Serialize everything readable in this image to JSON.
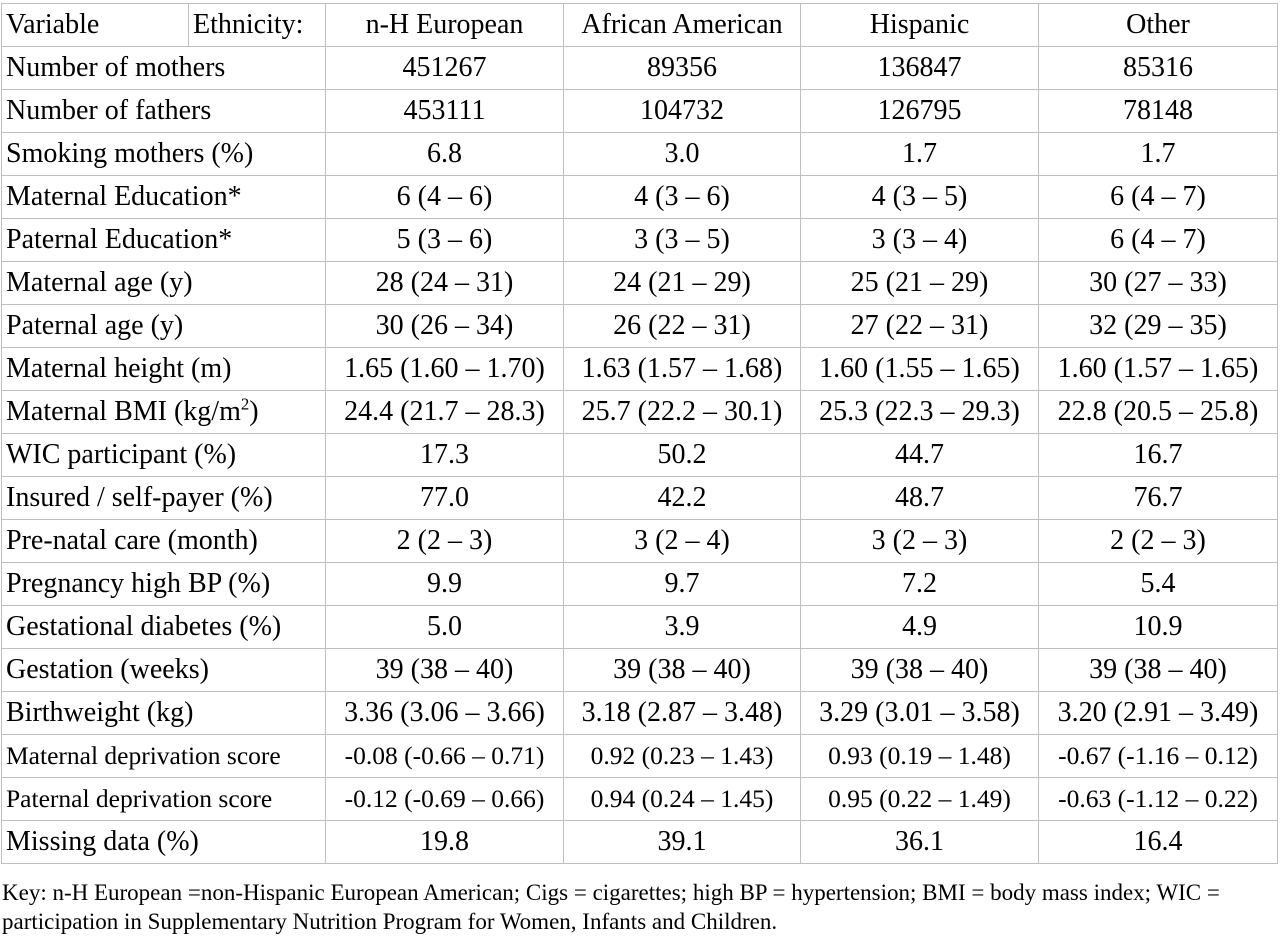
{
  "header": {
    "variable": "Variable",
    "ethnicity": "Ethnicity:",
    "groups": [
      "n-H European",
      "African American",
      "Hispanic",
      "Other"
    ]
  },
  "rows": [
    {
      "label": "Number of mothers",
      "values": [
        "451267",
        "89356",
        "136847",
        "85316"
      ]
    },
    {
      "label": "Number of fathers",
      "values": [
        "453111",
        "104732",
        "126795",
        "78148"
      ]
    },
    {
      "label": "Smoking mothers (%)",
      "values": [
        "6.8",
        "3.0",
        "1.7",
        "1.7"
      ]
    },
    {
      "label": "Maternal Education*",
      "values": [
        "6 (4 – 6)",
        "4 (3 – 6)",
        "4 (3 – 5)",
        "6 (4 – 7)"
      ]
    },
    {
      "label": "Paternal Education*",
      "values": [
        "5 (3 – 6)",
        "3 (3 – 5)",
        "3 (3 – 4)",
        "6 (4 – 7)"
      ]
    },
    {
      "label": "Maternal age (y)",
      "values": [
        "28 (24 – 31)",
        "24 (21 – 29)",
        "25 (21 – 29)",
        "30 (27 – 33)"
      ]
    },
    {
      "label": "Paternal age (y)",
      "values": [
        "30 (26 – 34)",
        "26 (22 – 31)",
        "27 (22 – 31)",
        "32 (29 – 35)"
      ]
    },
    {
      "label": "Maternal height (m)",
      "values": [
        "1.65 (1.60 – 1.70)",
        "1.63 (1.57 – 1.68)",
        "1.60 (1.55 – 1.65)",
        "1.60 (1.57 – 1.65)"
      ]
    },
    {
      "label": "Maternal BMI (kg/m",
      "label_sup": "2",
      "label_suffix": ")",
      "values": [
        "24.4 (21.7 – 28.3)",
        "25.7 (22.2 – 30.1)",
        "25.3 (22.3 – 29.3)",
        "22.8 (20.5 – 25.8)"
      ]
    },
    {
      "label": "WIC participant (%)",
      "values": [
        "17.3",
        "50.2",
        "44.7",
        "16.7"
      ]
    },
    {
      "label": "Insured / self-payer (%)",
      "values": [
        "77.0",
        "42.2",
        "48.7",
        "76.7"
      ]
    },
    {
      "label": "Pre-natal care (month)",
      "values": [
        "2 (2 – 3)",
        "3 (2 – 4)",
        "3 (2 – 3)",
        "2 (2 – 3)"
      ]
    },
    {
      "label": "Pregnancy high BP (%)",
      "values": [
        "9.9",
        "9.7",
        "7.2",
        "5.4"
      ]
    },
    {
      "label": "Gestational diabetes (%)",
      "values": [
        "5.0",
        "3.9",
        "4.9",
        "10.9"
      ]
    },
    {
      "label": "Gestation (weeks)",
      "values": [
        "39 (38 – 40)",
        "39 (38 – 40)",
        "39 (38 – 40)",
        "39 (38 – 40)"
      ]
    },
    {
      "label": "Birthweight (kg)",
      "values": [
        "3.36 (3.06 – 3.66)",
        "3.18 (2.87 – 3.48)",
        "3.29 (3.01 – 3.58)",
        "3.20 (2.91 – 3.49)"
      ]
    },
    {
      "label": "Maternal deprivation score",
      "values": [
        "-0.08 (-0.66 – 0.71)",
        "0.92 (0.23 – 1.43)",
        "0.93 (0.19 – 1.48)",
        "-0.67 (-1.16 – 0.12)"
      ]
    },
    {
      "label": "Paternal deprivation score",
      "values": [
        "-0.12 (-0.69 – 0.66)",
        "0.94 (0.24 – 1.45)",
        "0.95 (0.22 – 1.49)",
        "-0.63 (-1.12 – 0.22)"
      ]
    },
    {
      "label": "Missing data (%)",
      "values": [
        "19.8",
        "39.1",
        "36.1",
        "16.4"
      ]
    }
  ],
  "key": "Key: n-H European =non-Hispanic European American; Cigs = cigarettes; high BP = hypertension; BMI = body mass index; WIC = participation in Supplementary Nutrition Program for Women, Infants and Children."
}
